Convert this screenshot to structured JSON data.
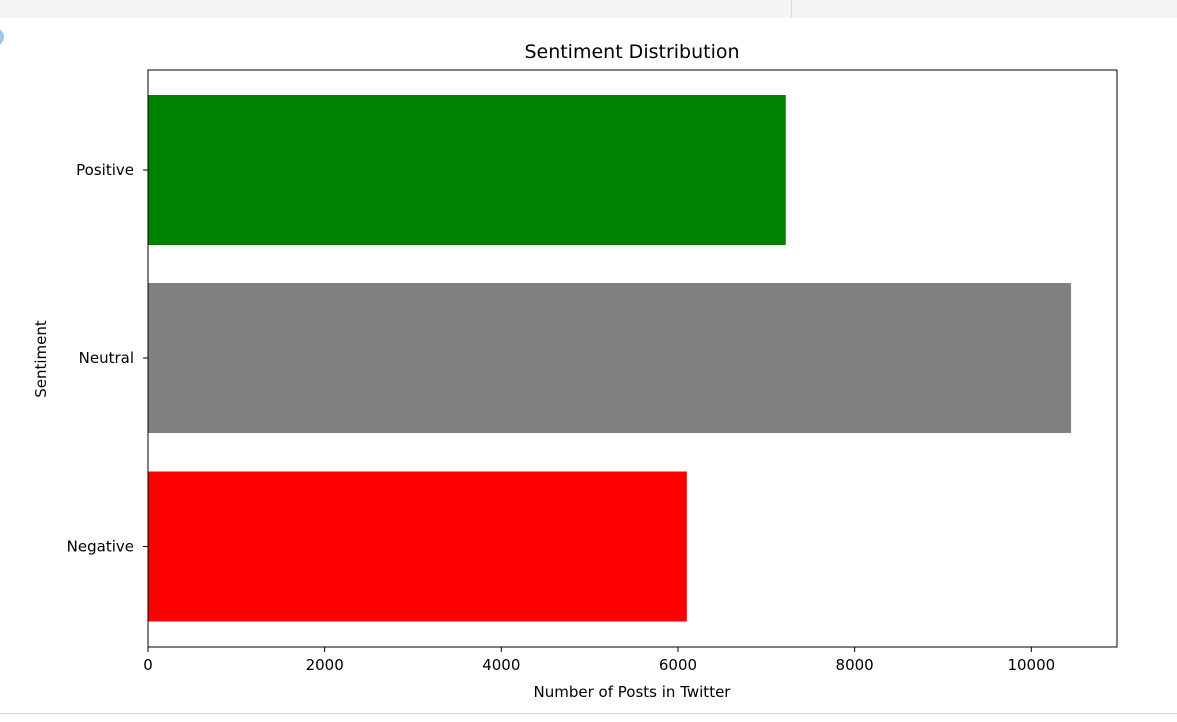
{
  "chart_data": {
    "type": "bar",
    "orientation": "horizontal",
    "title": "Sentiment Distribution",
    "xlabel": "Number of Posts in Twitter",
    "ylabel": "Sentiment",
    "categories": [
      "Negative",
      "Neutral",
      "Positive"
    ],
    "values": [
      6100,
      10450,
      7220
    ],
    "colors": [
      "#ff0000",
      "#808080",
      "#008000"
    ],
    "xlim": [
      0,
      10970
    ],
    "xticks": [
      0,
      2000,
      4000,
      6000,
      8000,
      10000
    ],
    "grid": false,
    "legend": "none"
  }
}
